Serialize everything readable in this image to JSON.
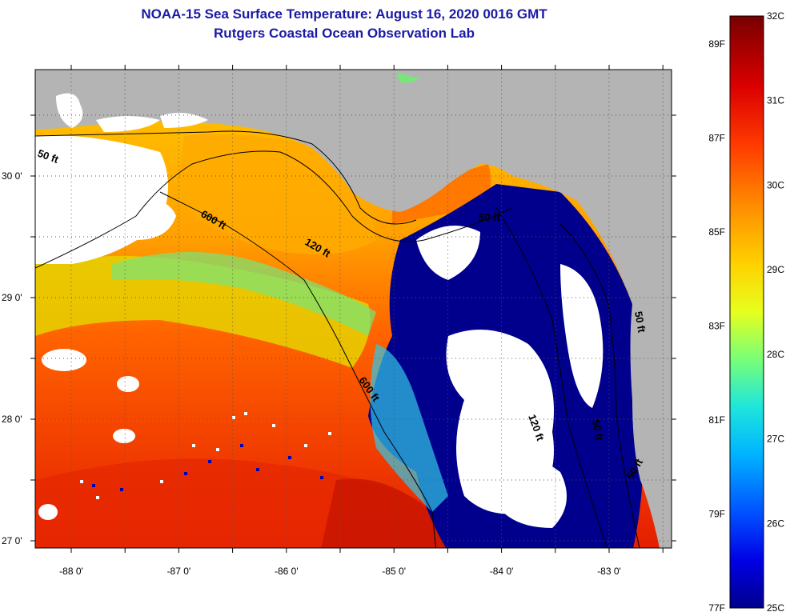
{
  "header": {
    "title": "NOAA-15 Sea Surface Temperature:  August 16, 2020 0016 GMT",
    "subtitle": "Rutgers Coastal Ocean Observation Lab"
  },
  "map": {
    "lat_labels": [
      {
        "value": 30,
        "label": "30 0'"
      },
      {
        "value": 29,
        "label": "29 0'"
      },
      {
        "value": 28,
        "label": "28 0'"
      },
      {
        "value": 27,
        "label": "27 0'"
      }
    ],
    "lon_labels": [
      {
        "value": -88,
        "label": "-88 0'"
      },
      {
        "value": -87,
        "label": "-87 0'"
      },
      {
        "value": -86,
        "label": "-86 0'"
      },
      {
        "value": -85,
        "label": "-85 0'"
      },
      {
        "value": -84,
        "label": "-84 0'"
      },
      {
        "value": -83,
        "label": "-83 0'"
      }
    ],
    "contour_labels": [
      "50 ft",
      "600 ft",
      "120 ft",
      "120 ft",
      "50 ft",
      "600 ft",
      "120 ft",
      "50 ft",
      "50 ft",
      "50 ft"
    ],
    "colors": {
      "land": "#b4b4b4",
      "cloud": "#ffffff",
      "cold": "#00008c",
      "warm": "#ff5a00"
    }
  },
  "colorbar": {
    "range_c": [
      25,
      32
    ],
    "range_f": [
      77,
      89.6
    ],
    "celsius_labels": [
      "32C",
      "31C",
      "30C",
      "29C",
      "28C",
      "27C",
      "26C",
      "25C"
    ],
    "fahrenheit_labels": [
      "89F",
      "87F",
      "85F",
      "83F",
      "81F",
      "79F",
      "77F"
    ],
    "fahrenheit_values": [
      89,
      87,
      85,
      83,
      81,
      79,
      77
    ]
  }
}
